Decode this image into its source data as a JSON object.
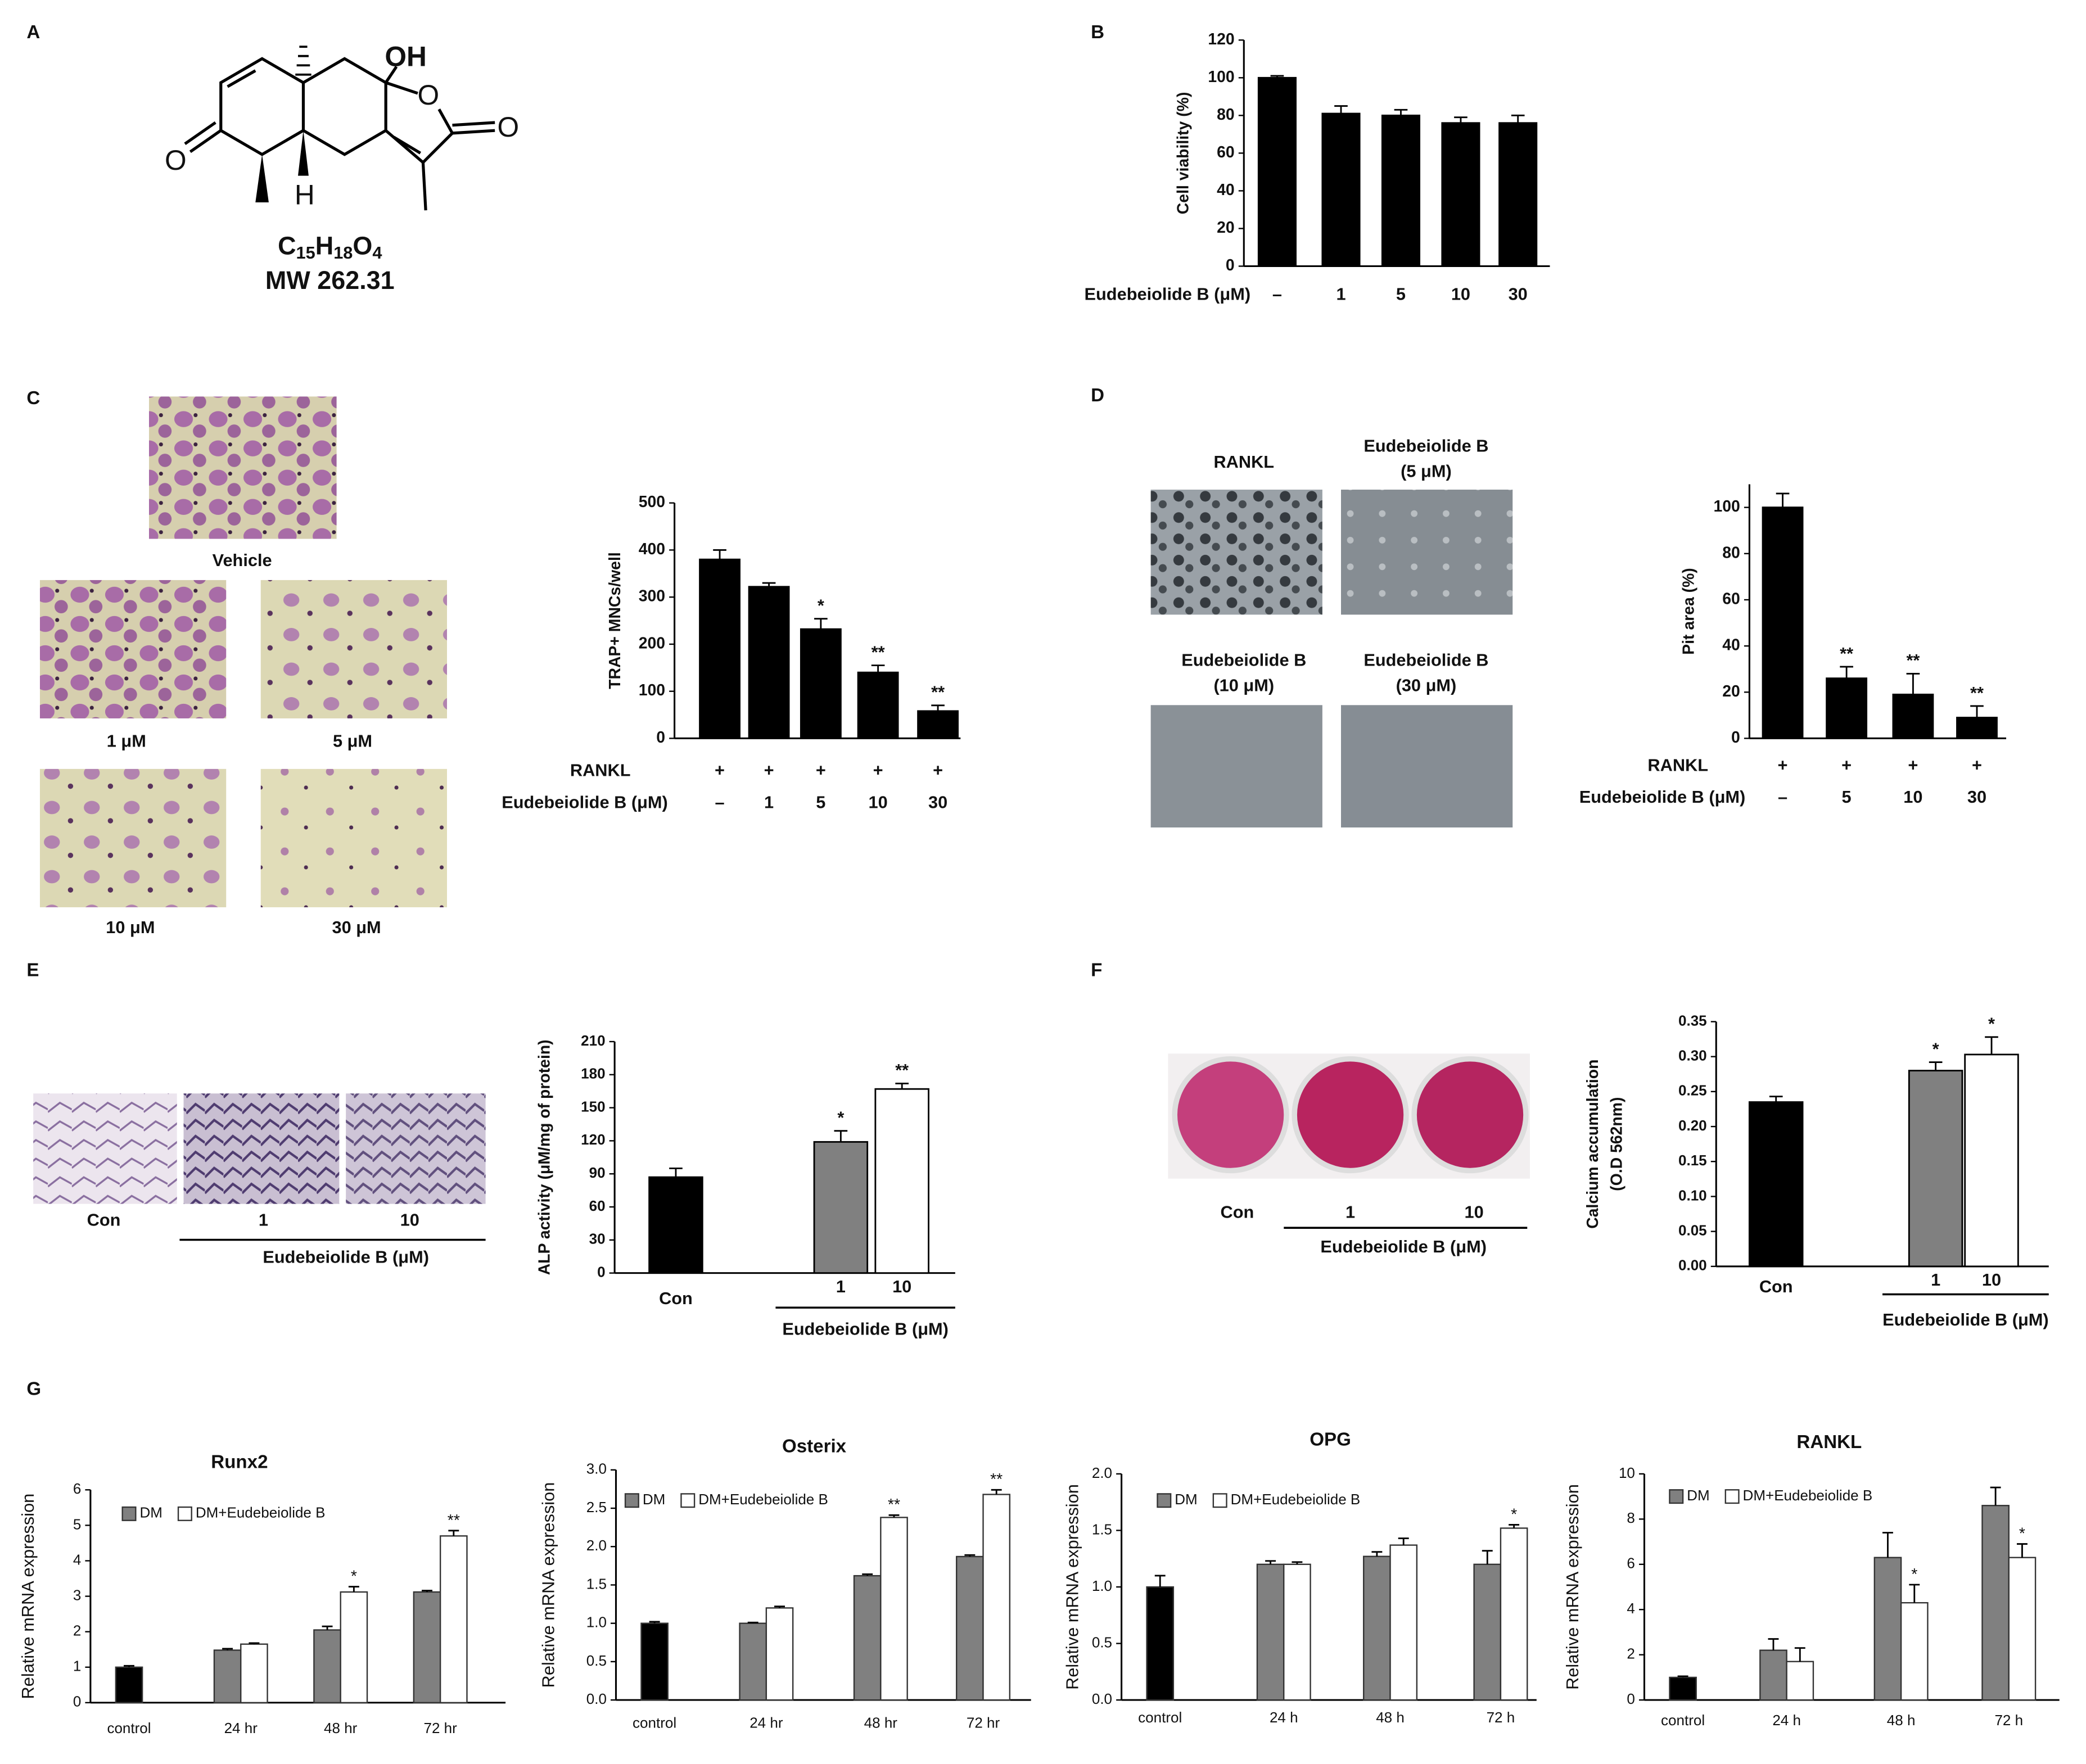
{
  "panels": [
    "A",
    "B",
    "C",
    "D",
    "E",
    "F",
    "G"
  ],
  "structure": {
    "atoms": [
      "OH",
      "O",
      "O",
      "O",
      "H"
    ],
    "formula": [
      "C",
      "15",
      "H",
      "18",
      "O",
      "4"
    ],
    "mw": "MW 262.31"
  },
  "images": {
    "C": [
      "Vehicle",
      "1 μM",
      "5 μM",
      "10 μM",
      "30 μM"
    ],
    "D": [
      [
        "RANKL"
      ],
      [
        "Eudebeiolide B",
        "(5 μM)"
      ],
      [
        "Eudebeiolide B",
        "(10 μM)"
      ],
      [
        "Eudebeiolide B",
        "(30 μM)"
      ]
    ],
    "E": {
      "labels": [
        "Con",
        "1",
        "10"
      ],
      "group": "Eudebeiolide B  (μM)"
    },
    "F": {
      "labels": [
        "Con",
        "1",
        "10"
      ],
      "group": "Eudebeiolide B (μM)"
    }
  },
  "chart_data": [
    {
      "type": "bar",
      "ylabel": "Cell viability (%)",
      "xlabel": "Eudebeiolide B (μM)",
      "categories": [
        "–",
        "1",
        "5",
        "10",
        "30"
      ],
      "values": [
        100,
        81,
        80,
        76,
        76
      ],
      "errors": [
        1,
        4,
        3,
        3,
        4
      ],
      "color": "#000000",
      "ylim": [
        0,
        120
      ],
      "yticks": [
        0,
        20,
        40,
        60,
        80,
        100,
        120
      ]
    },
    {
      "type": "bar",
      "ylabel": "TRAP+ MNCs/well",
      "xlabel": "Eudebeiolide B (μM)",
      "rankl_label": "RANKL",
      "rankl": [
        "+",
        "+",
        "+",
        "+",
        "+"
      ],
      "categories": [
        "–",
        "1",
        "5",
        "10",
        "30"
      ],
      "values": [
        380,
        322,
        232,
        140,
        58
      ],
      "errors": [
        20,
        8,
        22,
        15,
        12
      ],
      "sig": [
        null,
        null,
        "*",
        "**",
        "**"
      ],
      "color": "#000000",
      "ylim": [
        0,
        500
      ],
      "yticks": [
        0,
        100,
        200,
        300,
        400,
        500
      ]
    },
    {
      "type": "bar",
      "ylabel": "Pit area (%)",
      "xlabel": "Eudebeiolide B (μM)",
      "rankl_label": "RANKL",
      "rankl": [
        "+",
        "+",
        "+",
        "+"
      ],
      "categories": [
        "–",
        "5",
        "10",
        "30"
      ],
      "values": [
        100,
        26,
        19,
        9
      ],
      "errors": [
        6,
        5,
        9,
        5
      ],
      "sig": [
        null,
        "**",
        "**",
        "**"
      ],
      "color": "#000000",
      "ylim": [
        0,
        110
      ],
      "yticks": [
        0,
        20,
        40,
        60,
        80,
        100
      ]
    },
    {
      "type": "bar",
      "ylabel": "ALP activity (μM/mg of protein)",
      "group_label": "Eudebeiolide B  (μM)",
      "categories": [
        "Con",
        "1",
        "10"
      ],
      "values": [
        87,
        119,
        167
      ],
      "errors": [
        8,
        10,
        5
      ],
      "sig": [
        null,
        "*",
        "**"
      ],
      "colors": [
        "#000000",
        "#808080",
        "#ffffff"
      ],
      "ylim": [
        0,
        210
      ],
      "yticks": [
        0,
        30,
        60,
        90,
        120,
        150,
        180,
        210
      ]
    },
    {
      "type": "bar",
      "ylabel": [
        "Calcium accumulation",
        "(O.D 562nm)"
      ],
      "group_label": "Eudebeiolide B (μM)",
      "categories": [
        "Con",
        "1",
        "10"
      ],
      "values": [
        0.235,
        0.28,
        0.303
      ],
      "errors": [
        0.008,
        0.012,
        0.025
      ],
      "sig": [
        null,
        "*",
        "*"
      ],
      "colors": [
        "#000000",
        "#808080",
        "#ffffff"
      ],
      "ylim": [
        0,
        0.35
      ],
      "yticks": [
        {
          "value": 0,
          "label": "0.00"
        },
        0.05,
        {
          "value": 0.1,
          "label": "0.10"
        },
        0.15,
        {
          "value": 0.2,
          "label": "0.20"
        },
        0.25,
        {
          "value": 0.3,
          "label": "0.30"
        },
        0.35
      ]
    },
    {
      "type": "grouped_bar",
      "title": "Runx2",
      "ylabel": "Relative mRNA expression",
      "categories": [
        "control",
        "24 hr",
        "48 hr",
        "72 hr"
      ],
      "control": {
        "value": 1.0,
        "error": 0.04,
        "color": "#000000"
      },
      "series": [
        {
          "name": "DM",
          "color": "#808080",
          "values": [
            null,
            1.48,
            2.05,
            3.12
          ],
          "errors": [
            null,
            0.04,
            0.1,
            0.04
          ]
        },
        {
          "name": "DM+Eudebeiolide B",
          "color": "#ffffff",
          "values": [
            null,
            1.65,
            3.12,
            4.7
          ],
          "errors": [
            null,
            0.03,
            0.15,
            0.15
          ],
          "sig": [
            null,
            null,
            "*",
            "**"
          ]
        }
      ],
      "ylim": [
        0,
        6
      ],
      "yticks": [
        0,
        1,
        2,
        3,
        4,
        5,
        6
      ]
    },
    {
      "type": "grouped_bar",
      "title": "Osterix",
      "ylabel": "Relative mRNA expression",
      "categories": [
        "control",
        "24 hr",
        "48 hr",
        "72 hr"
      ],
      "control": {
        "value": 1.0,
        "error": 0.02,
        "color": "#000000"
      },
      "series": [
        {
          "name": "DM",
          "color": "#808080",
          "values": [
            null,
            1.0,
            1.62,
            1.87
          ],
          "errors": [
            null,
            0.01,
            0.02,
            0.02
          ]
        },
        {
          "name": "DM+Eudebeiolide B",
          "color": "#ffffff",
          "values": [
            null,
            1.2,
            2.38,
            2.68
          ],
          "errors": [
            null,
            0.02,
            0.03,
            0.06
          ],
          "sig": [
            null,
            null,
            "**",
            "**"
          ]
        }
      ],
      "ylim": [
        0,
        3.0
      ],
      "yticks": [
        {
          "value": 0,
          "label": "0.0"
        },
        0.5,
        {
          "value": 1,
          "label": "1.0"
        },
        1.5,
        {
          "value": 2,
          "label": "2.0"
        },
        2.5,
        {
          "value": 3,
          "label": "3.0"
        }
      ]
    },
    {
      "type": "grouped_bar",
      "title": "OPG",
      "ylabel": "Relative mRNA expression",
      "categories": [
        "control",
        "24 h",
        "48 h",
        "72 h"
      ],
      "control": {
        "value": 1.0,
        "error": 0.1,
        "color": "#000000"
      },
      "series": [
        {
          "name": "DM",
          "color": "#808080",
          "values": [
            null,
            1.2,
            1.27,
            1.2
          ],
          "errors": [
            null,
            0.03,
            0.04,
            0.12
          ]
        },
        {
          "name": "DM+Eudebeiolide B",
          "color": "#ffffff",
          "values": [
            null,
            1.2,
            1.37,
            1.52
          ],
          "errors": [
            null,
            0.02,
            0.06,
            0.03
          ],
          "sig": [
            null,
            null,
            null,
            "*"
          ]
        }
      ],
      "ylim": [
        0,
        2.0
      ],
      "yticks": [
        {
          "value": 0,
          "label": "0.0"
        },
        0.5,
        {
          "value": 1,
          "label": "1.0"
        },
        1.5,
        {
          "value": 2,
          "label": "2.0"
        }
      ]
    },
    {
      "type": "grouped_bar",
      "title": "RANKL",
      "ylabel": "Relative mRNA expression",
      "categories": [
        "control",
        "24 h",
        "48 h",
        "72 h"
      ],
      "control": {
        "value": 1.0,
        "error": 0.05,
        "color": "#000000"
      },
      "series": [
        {
          "name": "DM",
          "color": "#808080",
          "values": [
            null,
            2.2,
            6.3,
            8.6
          ],
          "errors": [
            null,
            0.5,
            1.1,
            0.8
          ]
        },
        {
          "name": "DM+Eudebeiolide B",
          "color": "#ffffff",
          "values": [
            null,
            1.7,
            4.3,
            6.3
          ],
          "errors": [
            null,
            0.6,
            0.8,
            0.6
          ],
          "sig": [
            null,
            null,
            "*",
            "*"
          ]
        }
      ],
      "ylim": [
        0,
        10
      ],
      "yticks": [
        0,
        2,
        4,
        6,
        8,
        10
      ]
    }
  ]
}
